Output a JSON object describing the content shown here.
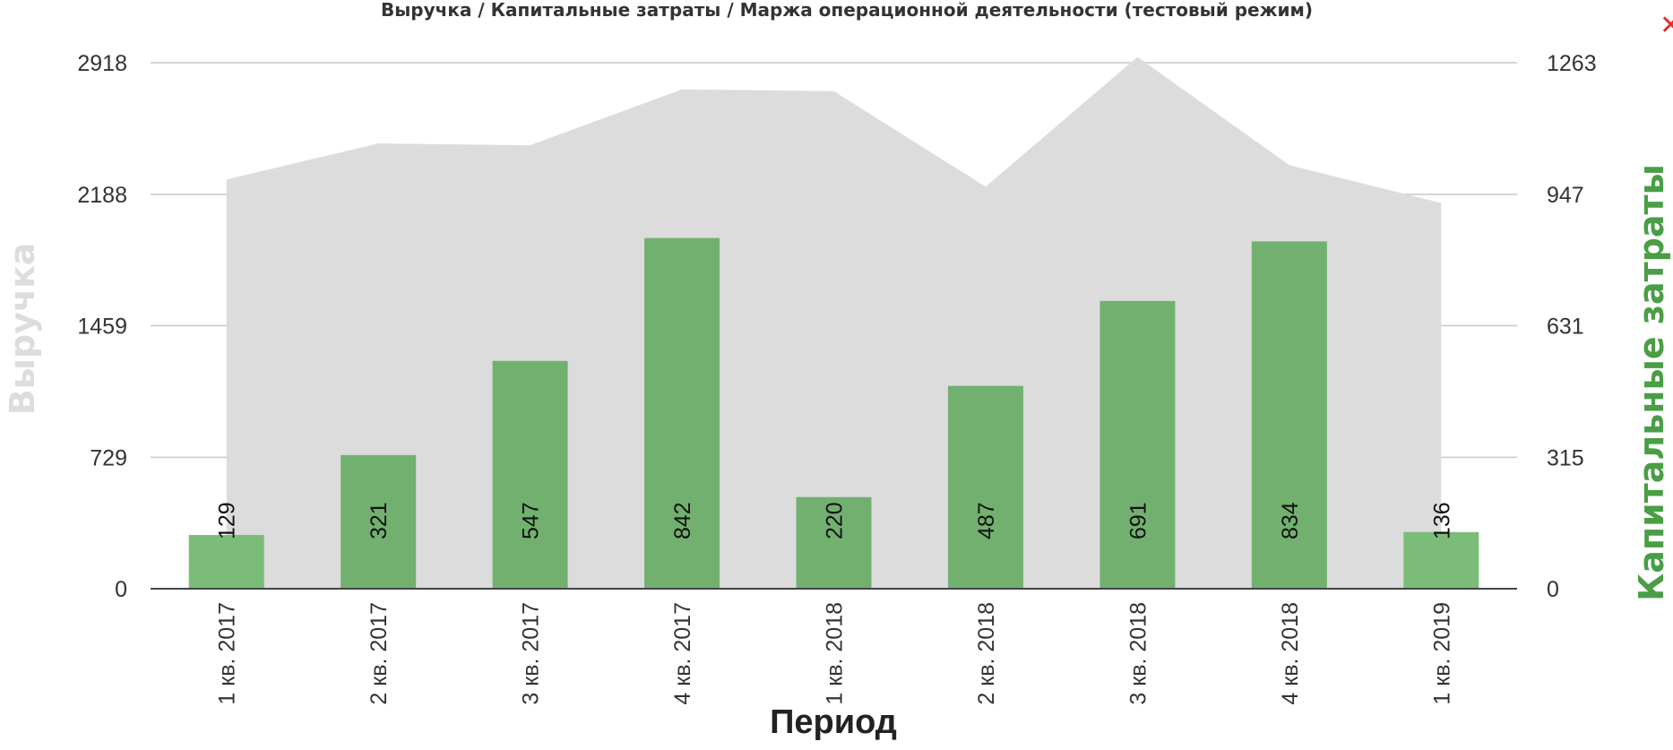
{
  "close_label": "✕",
  "chart_data": {
    "type": "bar",
    "title": "Выручка / Капитальные затраты / Маржа операционной деятельности (тестовый режим)",
    "xlabel": "Период",
    "ylabel_left": "Выручка",
    "ylabel_right": "Капитальные затраты",
    "categories": [
      "1 кв. 2017",
      "2 кв. 2017",
      "3 кв. 2017",
      "4 кв. 2017",
      "1 кв. 2018",
      "2 кв. 2018",
      "3 кв. 2018",
      "4 кв. 2018",
      "1 кв. 2019"
    ],
    "y_left": {
      "ticks": [
        "0",
        "729",
        "1459",
        "2188",
        "2918"
      ],
      "min": 0,
      "max": 2918
    },
    "y_right": {
      "ticks": [
        "0",
        "315",
        "631",
        "947",
        "1263"
      ],
      "min": 0,
      "max": 1263
    },
    "grid": true,
    "series": [
      {
        "name": "Выручка",
        "type": "area",
        "axis": "left",
        "color": "#dcdcdc",
        "values": [
          2270,
          2470,
          2460,
          2770,
          2760,
          2230,
          2950,
          2350,
          2140
        ]
      },
      {
        "name": "Капитальные затраты",
        "type": "bar",
        "axis": "right",
        "color": "#72b070",
        "edge_color": "#7bbd78",
        "values": [
          129,
          321,
          547,
          842,
          220,
          487,
          691,
          834,
          136
        ],
        "labels": [
          "129",
          "321",
          "547",
          "842",
          "220",
          "487",
          "691",
          "834",
          "136"
        ],
        "display_max": 1263
      }
    ]
  }
}
